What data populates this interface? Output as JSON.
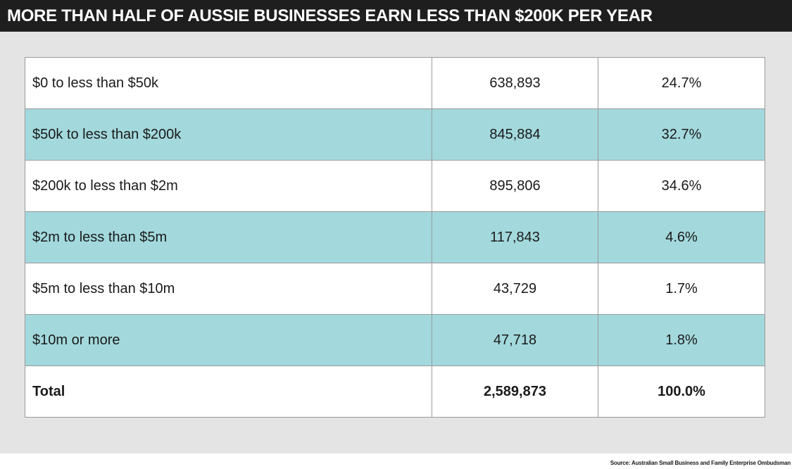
{
  "chart_data": {
    "type": "table",
    "title": "MORE THAN HALF OF AUSSIE BUSINESSES EARN LESS THAN $200K PER YEAR",
    "rows": [
      {
        "label": "$0 to less than $50k",
        "count": "638,893",
        "percent": "24.7%",
        "shaded": false,
        "total": false
      },
      {
        "label": "$50k to less than $200k",
        "count": "845,884",
        "percent": "32.7%",
        "shaded": true,
        "total": false
      },
      {
        "label": "$200k to less than $2m",
        "count": "895,806",
        "percent": "34.6%",
        "shaded": false,
        "total": false
      },
      {
        "label": "$2m to less than $5m",
        "count": "117,843",
        "percent": "4.6%",
        "shaded": true,
        "total": false
      },
      {
        "label": "$5m to less than $10m",
        "count": "43,729",
        "percent": "1.7%",
        "shaded": false,
        "total": false
      },
      {
        "label": "$10m or more",
        "count": "47,718",
        "percent": "1.8%",
        "shaded": true,
        "total": false
      },
      {
        "label": "Total",
        "count": "2,589,873",
        "percent": "100.0%",
        "shaded": false,
        "total": true
      }
    ],
    "source": "Source: Australian Small Business and Family Enterprise Ombudsman"
  },
  "colors": {
    "header_bg": "#1e1e1e",
    "panel_bg": "#e4e4e4",
    "row_shade": "#a3d9dd"
  }
}
